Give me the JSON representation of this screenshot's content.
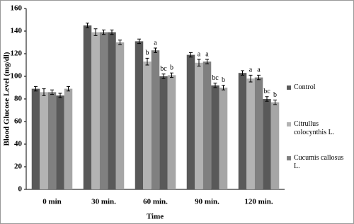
{
  "chart_data": {
    "type": "bar",
    "x_label": "Time",
    "y_label": "Blood Glucose Level (mg/dl)",
    "categories": [
      "0 min",
      "30 min.",
      "60 min.",
      "90 min.",
      "120 min."
    ],
    "series": [
      {
        "name": "Control",
        "color": "#595959",
        "values": [
          89,
          145,
          131,
          119,
          103
        ],
        "errors": [
          2,
          2,
          2,
          2,
          2
        ],
        "letters": [
          null,
          null,
          null,
          null,
          null
        ]
      },
      {
        "name": "Citrullus colocynthis L.",
        "color": "#b3b3b3",
        "values": [
          86,
          139,
          113,
          112,
          98
        ],
        "errors": [
          3,
          3,
          3,
          3,
          3
        ],
        "letters": [
          null,
          null,
          "b",
          "a",
          "a"
        ]
      },
      {
        "name": "Cucumis callosus L.",
        "color": "#808080",
        "values": [
          86,
          139,
          123,
          113,
          99
        ],
        "errors": [
          2,
          2,
          2,
          2,
          2
        ],
        "letters": [
          null,
          null,
          "a",
          "a",
          "a"
        ]
      },
      {
        "color": "#595959",
        "values": [
          83,
          139,
          100,
          92,
          80
        ],
        "errors": [
          2,
          2,
          2,
          2,
          2
        ],
        "letters": [
          null,
          null,
          "bc",
          "bc",
          "bc"
        ]
      },
      {
        "color": "#a6a6a6",
        "values": [
          89,
          130,
          101,
          90,
          77
        ],
        "errors": [
          2,
          2,
          2,
          2,
          2
        ],
        "letters": [
          null,
          null,
          "b",
          "b",
          "b"
        ]
      }
    ],
    "ylim": [
      0,
      160
    ],
    "yticks": [
      0,
      20,
      40,
      60,
      80,
      100,
      120,
      140,
      160
    ],
    "grid": false
  }
}
